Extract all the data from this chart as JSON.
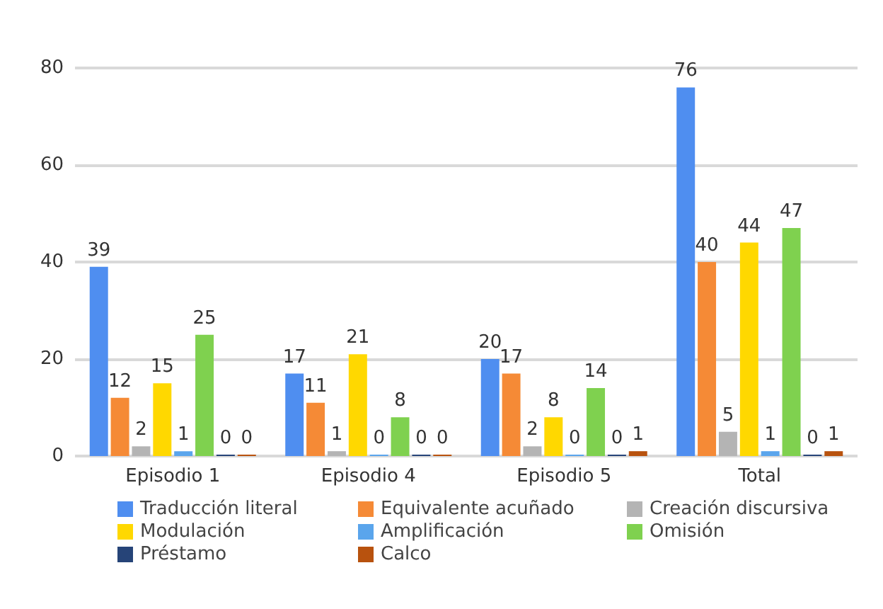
{
  "chart_data": {
    "type": "bar",
    "categories": [
      "Episodio 1",
      "Episodio 4",
      "Episodio 5",
      "Total"
    ],
    "series": [
      {
        "name": "Traducción literal",
        "color": "#4f8ef0",
        "values": [
          39,
          17,
          20,
          76
        ]
      },
      {
        "name": "Equivalente acuñado",
        "color": "#f58a36",
        "values": [
          12,
          11,
          17,
          40
        ]
      },
      {
        "name": "Creación discursiva",
        "color": "#b4b4b4",
        "values": [
          2,
          1,
          2,
          5
        ]
      },
      {
        "name": "Modulación",
        "color": "#ffd800",
        "values": [
          15,
          21,
          8,
          44
        ]
      },
      {
        "name": "Amplificación",
        "color": "#5aa5ec",
        "values": [
          1,
          0,
          0,
          1
        ]
      },
      {
        "name": "Omisión",
        "color": "#7fd14f",
        "values": [
          25,
          8,
          14,
          47
        ]
      },
      {
        "name": "Préstamo",
        "color": "#264478",
        "values": [
          0,
          0,
          0,
          0
        ]
      },
      {
        "name": "Calco",
        "color": "#b8520e",
        "values": [
          0,
          0,
          1,
          1
        ]
      }
    ],
    "ylim": [
      0,
      80
    ],
    "yticks": [
      0,
      20,
      40,
      60,
      80
    ],
    "grid": "y",
    "legend": "bottom",
    "data_labels": true
  }
}
